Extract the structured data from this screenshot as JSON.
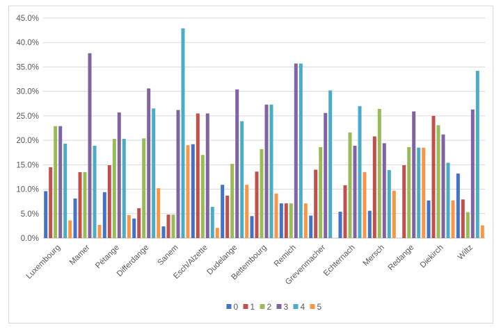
{
  "chart_data": {
    "type": "bar",
    "title": "",
    "xlabel": "",
    "ylabel": "",
    "ylim": [
      0,
      45
    ],
    "y_tick_step": 5,
    "y_tick_labels": [
      "0.0%",
      "5.0%",
      "10.0%",
      "15.0%",
      "20.0%",
      "25.0%",
      "30.0%",
      "35.0%",
      "40.0%",
      "45.0%"
    ],
    "grid": true,
    "legend_position": "bottom",
    "categories": [
      "Luxembourg",
      "Mamer",
      "Pétange",
      "Differdange",
      "Sanem",
      "Esch/Alzette",
      "Dudelange",
      "Bettembourg",
      "Remich",
      "Grevenmacher",
      "Echternach",
      "Mersch",
      "Redange",
      "Diekirch",
      "Wiltz"
    ],
    "series": [
      {
        "name": "0",
        "color": "#4472c4",
        "values": [
          9.6,
          8.1,
          9.4,
          4.0,
          2.4,
          19.2,
          10.9,
          4.5,
          7.1,
          4.6,
          5.4,
          5.6,
          0,
          7.7,
          13.2
        ]
      },
      {
        "name": "1",
        "color": "#c0504d",
        "values": [
          14.5,
          13.5,
          14.9,
          6.1,
          4.8,
          25.5,
          8.7,
          13.6,
          7.1,
          14.0,
          10.8,
          20.8,
          14.9,
          25.0,
          7.9
        ]
      },
      {
        "name": "2",
        "color": "#9bbb59",
        "values": [
          22.9,
          13.5,
          20.3,
          20.4,
          4.8,
          17.0,
          15.2,
          18.2,
          7.1,
          18.6,
          21.6,
          26.4,
          18.6,
          23.1,
          5.3
        ]
      },
      {
        "name": "3",
        "color": "#8064a2",
        "values": [
          22.9,
          37.8,
          25.7,
          30.6,
          26.2,
          25.5,
          30.4,
          27.3,
          35.7,
          25.6,
          18.9,
          19.4,
          25.9,
          21.2,
          26.3
        ]
      },
      {
        "name": "4",
        "color": "#4bacc6",
        "values": [
          19.3,
          18.9,
          20.3,
          26.5,
          42.9,
          6.4,
          23.9,
          27.3,
          35.7,
          30.2,
          27.0,
          13.9,
          18.5,
          15.4,
          34.2
        ]
      },
      {
        "name": "5",
        "color": "#f79646",
        "values": [
          3.6,
          2.7,
          4.7,
          10.2,
          19.0,
          2.1,
          10.9,
          9.1,
          7.1,
          0,
          13.5,
          9.7,
          18.5,
          7.7,
          2.6
        ]
      }
    ]
  }
}
